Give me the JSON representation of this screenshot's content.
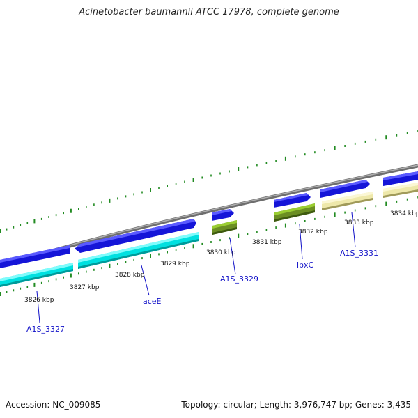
{
  "title": "Acinetobacter baumannii ATCC 17978, complete genome",
  "footer": {
    "accession": "Accession: NC_009085",
    "stats": "Topology: circular; Length: 3,976,747 bp; Genes: 3,435"
  },
  "colors": {
    "backbone": "#8c8c8c",
    "cds_forward": "#1a1ae6",
    "cds_cyan": "#10f0f0",
    "cds_olive": "#6b8e23",
    "cds_khaki": "#eee8aa",
    "tick": "#228b22",
    "gene_label": "#1010c8",
    "kbp_label": "#111111"
  },
  "kbp_labels": [
    "3826 kbp",
    "3827 kbp",
    "3828 kbp",
    "3829 kbp",
    "3830 kbp",
    "3831 kbp",
    "3832 kbp",
    "3833 kbp",
    "3834 kbp"
  ],
  "gene_labels": [
    "A1S_3327",
    "aceE",
    "A1S_3329",
    "lpxC",
    "A1S_3331"
  ]
}
